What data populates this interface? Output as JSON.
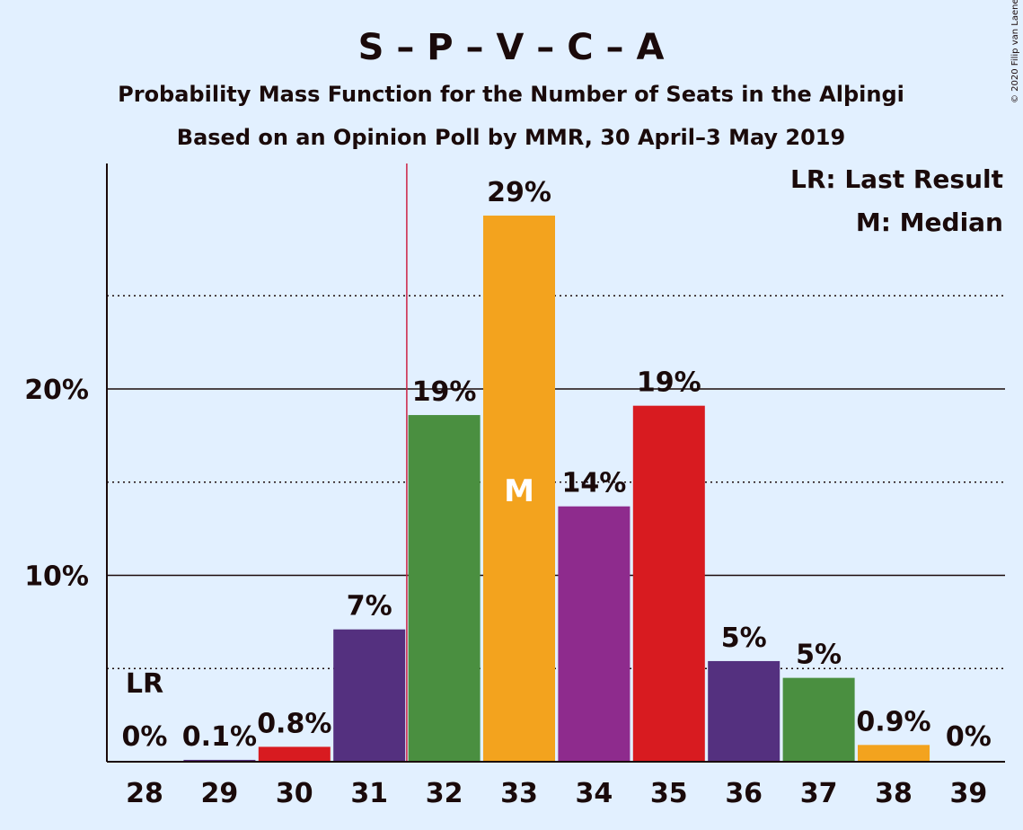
{
  "chart_data": {
    "type": "bar",
    "title": "S – P – V – C – A",
    "subtitle": "Probability Mass Function for the Number of Seats in the Alþingi",
    "subtitle2": "Based on an Opinion Poll by MMR, 30 April–3 May 2019",
    "copyright": "© 2020 Filip van Laenen",
    "categories": [
      "28",
      "29",
      "30",
      "31",
      "32",
      "33",
      "34",
      "35",
      "36",
      "37",
      "38",
      "39"
    ],
    "values": [
      0,
      0.1,
      0.8,
      7.1,
      18.6,
      29.3,
      13.7,
      19.1,
      5.4,
      4.5,
      0.9,
      0
    ],
    "value_labels": [
      "0%",
      "0.1%",
      "0.8%",
      "7%",
      "19%",
      "29%",
      "14%",
      "19%",
      "5%",
      "5%",
      "0.9%",
      "0%"
    ],
    "bar_colors": [
      "#4a8f40",
      "#54307f",
      "#d81b20",
      "#54307f",
      "#4a8f40",
      "#f3a31e",
      "#8e2b8d",
      "#d81b20",
      "#54307f",
      "#4a8f40",
      "#f3a31e",
      "#d81b20"
    ],
    "ylim": [
      0,
      32
    ],
    "yticks": [
      10,
      20
    ],
    "ytick_labels": [
      "10%",
      "20%"
    ],
    "minor_gridlines": [
      5,
      15,
      25
    ],
    "last_result_seat": "28",
    "last_result_label": "LR",
    "majority_line_between": [
      "31",
      "32"
    ],
    "median_seat": "33",
    "median_label": "M",
    "legend": [
      "LR: Last Result",
      "M: Median"
    ]
  }
}
